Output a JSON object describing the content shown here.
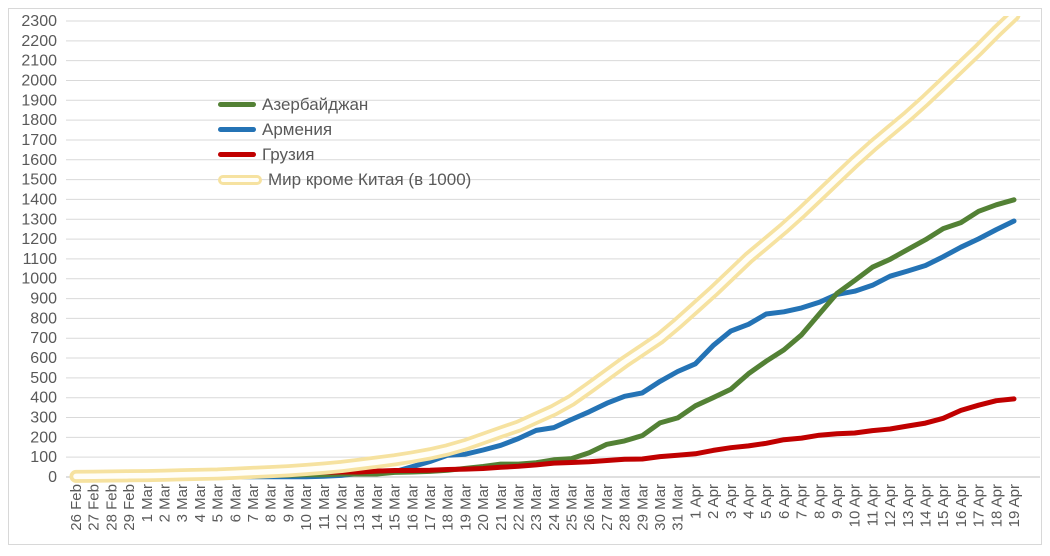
{
  "chart_data": {
    "type": "line",
    "title": "",
    "grid": true,
    "legend_position": "inset-top-left",
    "y_axis": {
      "min": 0,
      "max": 2300,
      "step": 100
    },
    "y_tick_labels": [
      "0",
      "100",
      "200",
      "300",
      "400",
      "500",
      "600",
      "700",
      "800",
      "900",
      "1000",
      "1100",
      "1200",
      "1300",
      "1400",
      "1500",
      "1600",
      "1700",
      "1800",
      "1900",
      "2000",
      "2100",
      "2200",
      "2300"
    ],
    "x_labels": [
      "26 Feb",
      "27 Feb",
      "28 Feb",
      "29 Feb",
      "1 Mar",
      "2 Mar",
      "3 Mar",
      "4 Mar",
      "5 Mar",
      "6 Mar",
      "7 Mar",
      "8 Mar",
      "9 Mar",
      "10 Mar",
      "11 Mar",
      "12 Mar",
      "13 Mar",
      "14 Mar",
      "15 Mar",
      "16 Mar",
      "17 Mar",
      "18 Mar",
      "19 Mar",
      "20 Mar",
      "21 Mar",
      "22 Mar",
      "23 Mar",
      "24 Mar",
      "25 Mar",
      "26 Mar",
      "27 Mar",
      "28 Mar",
      "29 Mar",
      "30 Mar",
      "31 Mar",
      "1 Apr",
      "2 Apr",
      "3 Apr",
      "4 Apr",
      "5 Apr",
      "6 Apr",
      "7 Apr",
      "8 Apr",
      "9 Apr",
      "10 Apr",
      "11 Apr",
      "12 Apr",
      "13 Apr",
      "14 Apr",
      "15 Apr",
      "16 Apr",
      "17 Apr",
      "18 Apr",
      "19 Apr"
    ],
    "series": [
      {
        "key": "azerbaijan",
        "name": "Азербайджан",
        "color": "#538135",
        "line_style": "solid",
        "values": [
          0,
          0,
          1,
          1,
          3,
          3,
          3,
          3,
          6,
          6,
          9,
          9,
          9,
          11,
          11,
          15,
          15,
          15,
          23,
          25,
          28,
          34,
          44,
          53,
          65,
          65,
          72,
          87,
          93,
          122,
          165,
          182,
          209,
          273,
          298,
          359,
          400,
          443,
          521,
          584,
          641,
          717,
          822,
          926,
          991,
          1058,
          1098,
          1148,
          1197,
          1253,
          1283,
          1340,
          1373,
          1398
        ]
      },
      {
        "key": "armenia",
        "name": "Армения",
        "color": "#2473b5",
        "line_style": "solid",
        "values": [
          0,
          0,
          0,
          0,
          1,
          1,
          1,
          1,
          1,
          1,
          1,
          1,
          1,
          1,
          4,
          8,
          18,
          26,
          26,
          52,
          78,
          110,
          115,
          136,
          160,
          194,
          235,
          249,
          290,
          329,
          372,
          407,
          424,
          482,
          532,
          571,
          663,
          736,
          770,
          822,
          833,
          853,
          881,
          921,
          937,
          967,
          1013,
          1039,
          1067,
          1111,
          1159,
          1201,
          1248,
          1291
        ]
      },
      {
        "key": "georgia",
        "name": "Грузия",
        "color": "#c00000",
        "line_style": "solid",
        "values": [
          1,
          2,
          2,
          3,
          3,
          3,
          3,
          4,
          9,
          9,
          12,
          15,
          15,
          23,
          24,
          25,
          25,
          30,
          33,
          33,
          34,
          38,
          40,
          43,
          49,
          54,
          61,
          70,
          73,
          77,
          83,
          90,
          91,
          103,
          110,
          117,
          134,
          148,
          157,
          170,
          188,
          196,
          211,
          218,
          222,
          234,
          242,
          257,
          272,
          296,
          336,
          362,
          385,
          394
        ]
      },
      {
        "key": "world-except-china",
        "name": "Мир кроме Китая (в 1000)",
        "color": "#f6e2a0",
        "inner_color": "#fffef8",
        "line_style": "tube",
        "values": [
          3,
          4,
          5,
          6,
          7,
          9,
          11,
          13,
          15,
          19,
          23,
          27,
          32,
          38,
          45,
          53,
          64,
          75,
          87,
          101,
          117,
          137,
          163,
          194,
          226,
          256,
          297,
          337,
          387,
          450,
          515,
          580,
          640,
          700,
          775,
          855,
          935,
          1020,
          1105,
          1180,
          1255,
          1335,
          1420,
          1505,
          1590,
          1670,
          1745,
          1820,
          1900,
          1985,
          2070,
          2155,
          2245,
          2330
        ]
      }
    ],
    "colors": {
      "gridline": "#d9d9d9",
      "axis_line": "#bfbfbf",
      "tick_label": "#595959",
      "border": "#d8d8d8"
    }
  }
}
